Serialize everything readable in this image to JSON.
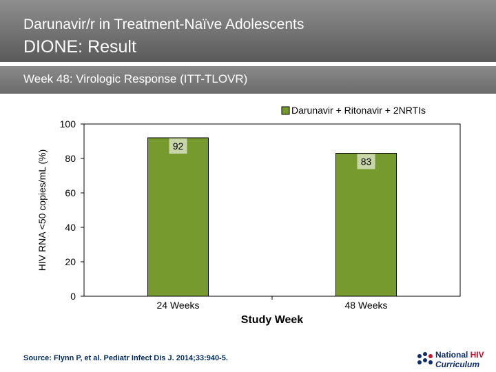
{
  "header": {
    "title_line1": "Darunavir/r in Treatment-Naïve Adolescents",
    "title_line2": "DIONE: Result"
  },
  "subtitle": "Week 48: Virologic Response (ITT-TLOVR)",
  "chart_data": {
    "type": "bar",
    "categories": [
      "24 Weeks",
      "48 Weeks"
    ],
    "series": [
      {
        "name": "Darunavir + Ritonavir + 2NRTIs",
        "values": [
          92,
          83
        ]
      }
    ],
    "data_labels": [
      "92",
      "83"
    ],
    "ylabel": "HIV RNA <50 copies/mL (%)",
    "xlabel": "Study Week",
    "ylim": [
      0,
      100
    ],
    "yticks": [
      "0",
      "20",
      "40",
      "60",
      "80",
      "100"
    ],
    "legend_position": "top-right",
    "colors": {
      "bar": "#779a2f",
      "bar_edge": "#000000",
      "label_bg": "#c8d6a9"
    }
  },
  "footer": {
    "source": "Source: Flynn P, et al. Pediatr Infect Dis J. 2014;33:940-5.",
    "logo_line1_a": "National ",
    "logo_line1_b": "HIV",
    "logo_line2": "Curriculum"
  }
}
